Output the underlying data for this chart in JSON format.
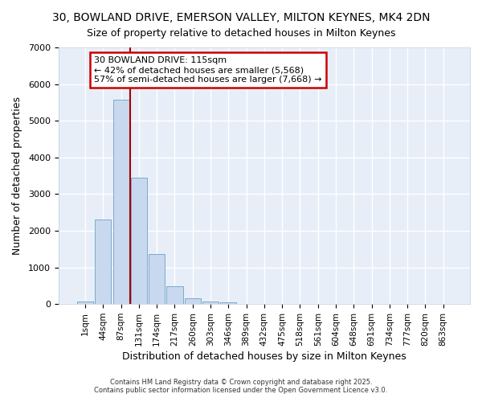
{
  "title": "30, BOWLAND DRIVE, EMERSON VALLEY, MILTON KEYNES, MK4 2DN",
  "subtitle": "Size of property relative to detached houses in Milton Keynes",
  "xlabel": "Distribution of detached houses by size in Milton Keynes",
  "ylabel": "Number of detached properties",
  "categories": [
    "1sqm",
    "44sqm",
    "87sqm",
    "131sqm",
    "174sqm",
    "217sqm",
    "260sqm",
    "303sqm",
    "346sqm",
    "389sqm",
    "432sqm",
    "475sqm",
    "518sqm",
    "561sqm",
    "604sqm",
    "648sqm",
    "691sqm",
    "734sqm",
    "777sqm",
    "820sqm",
    "863sqm"
  ],
  "values": [
    75,
    2300,
    5580,
    3450,
    1360,
    480,
    165,
    75,
    50,
    0,
    0,
    0,
    0,
    0,
    0,
    0,
    0,
    0,
    0,
    0,
    0
  ],
  "bar_color": "#c8d8ee",
  "bar_edge_color": "#7aabcc",
  "bg_color": "#ffffff",
  "plot_bg_color": "#e8eef8",
  "grid_color": "#ffffff",
  "vline_x": 2.5,
  "vline_color": "#aa0000",
  "ylim": [
    0,
    7000
  ],
  "yticks": [
    0,
    1000,
    2000,
    3000,
    4000,
    5000,
    6000,
    7000
  ],
  "annotation_text": "30 BOWLAND DRIVE: 115sqm\n← 42% of detached houses are smaller (5,568)\n57% of semi-detached houses are larger (7,668) →",
  "annotation_box_color": "#ffffff",
  "annotation_box_edge": "#cc0000",
  "footer1": "Contains HM Land Registry data © Crown copyright and database right 2025.",
  "footer2": "Contains public sector information licensed under the Open Government Licence v3.0."
}
